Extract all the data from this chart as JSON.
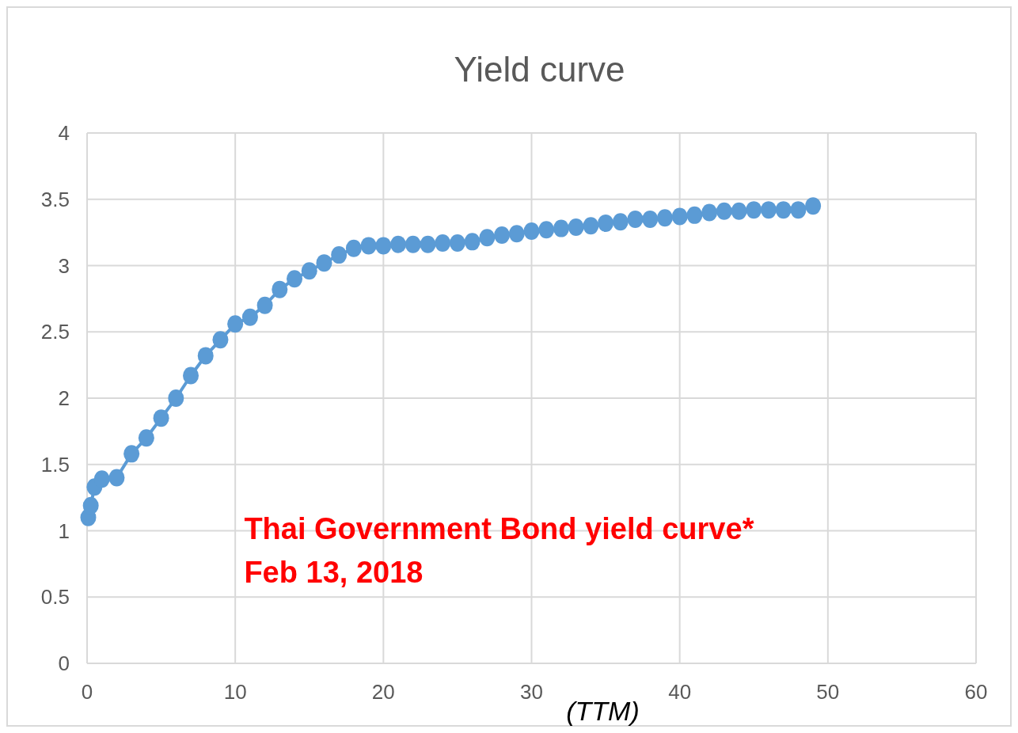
{
  "chart_data": {
    "type": "line",
    "title": "Yield curve",
    "xlabel": "(TTM)",
    "annotations": [
      "Thai Government Bond yield curve*",
      "Feb 13, 2018"
    ],
    "x": [
      0.08,
      0.25,
      0.5,
      1,
      2,
      3,
      4,
      5,
      6,
      7,
      8,
      9,
      10,
      11,
      12,
      13,
      14,
      15,
      16,
      17,
      18,
      19,
      20,
      21,
      22,
      23,
      24,
      25,
      26,
      27,
      28,
      29,
      30,
      31,
      32,
      33,
      34,
      35,
      36,
      37,
      38,
      39,
      40,
      41,
      42,
      43,
      44,
      45,
      46,
      47,
      48,
      49
    ],
    "series": [
      {
        "color": "#5b9bd5",
        "values": [
          1.1,
          1.19,
          1.33,
          1.39,
          1.4,
          1.58,
          1.7,
          1.85,
          2.0,
          2.17,
          2.32,
          2.44,
          2.56,
          2.61,
          2.7,
          2.82,
          2.9,
          2.96,
          3.02,
          3.08,
          3.13,
          3.15,
          3.15,
          3.16,
          3.16,
          3.16,
          3.17,
          3.17,
          3.18,
          3.21,
          3.23,
          3.24,
          3.26,
          3.27,
          3.28,
          3.29,
          3.3,
          3.32,
          3.33,
          3.35,
          3.35,
          3.36,
          3.37,
          3.38,
          3.4,
          3.41,
          3.41,
          3.42,
          3.42,
          3.42,
          3.42,
          3.45
        ]
      }
    ],
    "xlim": [
      0,
      60
    ],
    "xticks": [
      0,
      10,
      20,
      30,
      40,
      50,
      60
    ],
    "ylim": [
      0,
      4
    ],
    "yticks": [
      0,
      0.5,
      1,
      1.5,
      2,
      2.5,
      3,
      3.5,
      4
    ],
    "grid": true,
    "marker": "circle",
    "line_style": "solid"
  }
}
